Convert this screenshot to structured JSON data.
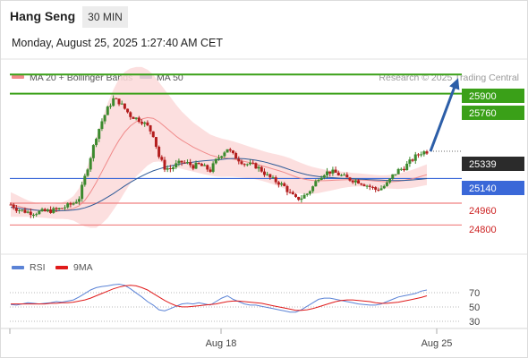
{
  "header": {
    "instrument": "Hang Seng",
    "timeframe": "30 MIN",
    "datetime": "Monday, August 25, 2025 1:27:40 AM CET"
  },
  "legend": {
    "items": [
      {
        "label": "MA 20 + Bollinger Bands",
        "color": "#f08a8a"
      },
      {
        "label": "MA 50",
        "color": "#2e5a97"
      }
    ],
    "credit": "Research © 2025 Trading Central"
  },
  "rsi_legend": {
    "items": [
      {
        "label": "RSI",
        "color": "#5b83d6"
      },
      {
        "label": "9MA",
        "color": "#e01b1b"
      }
    ]
  },
  "colors": {
    "up": "#3c8a2e",
    "down": "#b31d1d",
    "resistance": "#3aa018",
    "support": "#f08080",
    "pivot": "#3a68d8",
    "arrow": "#2c5ea8",
    "band_fill": "#fbd9d9",
    "ma20": "#f08a8a",
    "ma50": "#2e5a97",
    "rsi": "#5b83d6",
    "rsi_ma": "#e01b1b"
  },
  "chart_data": {
    "type": "candlestick",
    "x_ticks": [
      "Aug 18",
      "Aug 25"
    ],
    "y_range": [
      24600,
      26000
    ],
    "price_series": [
      24950,
      24920,
      24905,
      24895,
      24890,
      24895,
      24900,
      24905,
      24910,
      24925,
      24940,
      24960,
      25000,
      25150,
      25300,
      25450,
      25560,
      25650,
      25720,
      25700,
      25650,
      25600,
      25580,
      25560,
      25520,
      25460,
      25300,
      25220,
      25210,
      25240,
      25260,
      25250,
      25230,
      25240,
      25220,
      25200,
      25270,
      25320,
      25360,
      25310,
      25280,
      25250,
      25240,
      25230,
      25200,
      25160,
      25130,
      25110,
      25080,
      25030,
      24990,
      25000,
      25030,
      25080,
      25150,
      25180,
      25190,
      25180,
      25160,
      25140,
      25130,
      25120,
      25100,
      25080,
      25060,
      25070,
      25100,
      25160,
      25200,
      25220,
      25260,
      25300,
      25330,
      25339
    ],
    "ma20": [
      24950,
      24940,
      24930,
      24920,
      24912,
      24905,
      24902,
      24900,
      24900,
      24905,
      24912,
      24922,
      24940,
      24980,
      25040,
      25110,
      25190,
      25270,
      25350,
      25420,
      25480,
      25525,
      25555,
      25575,
      25585,
      25580,
      25555,
      25520,
      25485,
      25450,
      25420,
      25395,
      25370,
      25350,
      25330,
      25312,
      25300,
      25292,
      25288,
      25282,
      25274,
      25265,
      25256,
      25246,
      25234,
      25222,
      25210,
      25198,
      25184,
      25168,
      25152,
      25140,
      25132,
      25126,
      25124,
      25124,
      25126,
      25128,
      25130,
      25131,
      25131,
      25130,
      25128,
      25126,
      25122,
      25118,
      25116,
      25117,
      25120,
      25126,
      25134,
      25144,
      25156,
      25168
    ],
    "ma50": [
      24930,
      24925,
      24920,
      24915,
      24910,
      24907,
      24905,
      24904,
      24904,
      24905,
      24907,
      24910,
      24916,
      24926,
      24940,
      24958,
      24980,
      25004,
      25030,
      25058,
      25086,
      25112,
      25136,
      25158,
      25178,
      25196,
      25210,
      25222,
      25232,
      25240,
      25248,
      25254,
      25260,
      25266,
      25270,
      25273,
      25276,
      25280,
      25284,
      25286,
      25286,
      25284,
      25280,
      25274,
      25266,
      25256,
      25244,
      25232,
      25218,
      25204,
      25190,
      25178,
      25168,
      25160,
      25154,
      25150,
      25147,
      25144,
      25142,
      25140,
      25138,
      25136,
      25134,
      25132,
      25130,
      25128,
      25126,
      25125,
      25125,
      25126,
      25128,
      25131,
      25135,
      25140
    ],
    "bb_width": [
      90,
      80,
      70,
      60,
      55,
      50,
      50,
      52,
      55,
      60,
      70,
      90,
      130,
      190,
      260,
      330,
      380,
      420,
      440,
      450,
      440,
      420,
      400,
      380,
      350,
      320,
      290,
      270,
      250,
      230,
      210,
      195,
      180,
      170,
      160,
      150,
      145,
      140,
      135,
      130,
      125,
      120,
      115,
      112,
      110,
      110,
      112,
      115,
      118,
      120,
      118,
      112,
      105,
      98,
      90,
      82,
      75,
      68,
      60,
      55,
      50,
      48,
      46,
      44,
      44,
      45,
      48,
      52,
      56,
      60,
      64,
      68,
      72,
      76
    ],
    "projection": {
      "from": 25339,
      "to": 25900
    },
    "levels": {
      "resistance": [
        25900,
        25760
      ],
      "pivot": 25140,
      "support": [
        24960,
        24800
      ],
      "last": 25339
    },
    "level_labels": {
      "r1": "25900",
      "r2": "25760",
      "last": "25339",
      "pivot": "25140",
      "s1": "24960",
      "s2": "24800"
    },
    "rsi": {
      "y_ticks": [
        "70",
        "50",
        "30"
      ],
      "rsi": [
        45,
        44,
        46,
        48,
        47,
        46,
        47,
        48,
        50,
        49,
        51,
        53,
        58,
        64,
        70,
        74,
        76,
        77,
        79,
        80,
        78,
        72,
        65,
        58,
        50,
        44,
        36,
        34,
        38,
        42,
        46,
        47,
        46,
        48,
        46,
        44,
        50,
        56,
        60,
        54,
        50,
        46,
        44,
        44,
        42,
        40,
        38,
        36,
        34,
        32,
        32,
        36,
        42,
        48,
        54,
        56,
        56,
        54,
        52,
        50,
        48,
        46,
        45,
        44,
        44,
        46,
        50,
        54,
        58,
        60,
        62,
        64,
        68,
        70
      ],
      "ma9": [
        46,
        46,
        46,
        46,
        46,
        46,
        46,
        47,
        47,
        48,
        48,
        49,
        51,
        53,
        56,
        60,
        64,
        68,
        72,
        75,
        77,
        78,
        77,
        74,
        70,
        64,
        58,
        52,
        47,
        43,
        41,
        41,
        42,
        43,
        44,
        45,
        46,
        48,
        50,
        51,
        51,
        50,
        49,
        48,
        47,
        45,
        43,
        41,
        39,
        37,
        35,
        35,
        36,
        38,
        41,
        44,
        47,
        50,
        52,
        53,
        53,
        52,
        51,
        50,
        48,
        47,
        47,
        48,
        49,
        51,
        53,
        55,
        57,
        60
      ]
    }
  }
}
